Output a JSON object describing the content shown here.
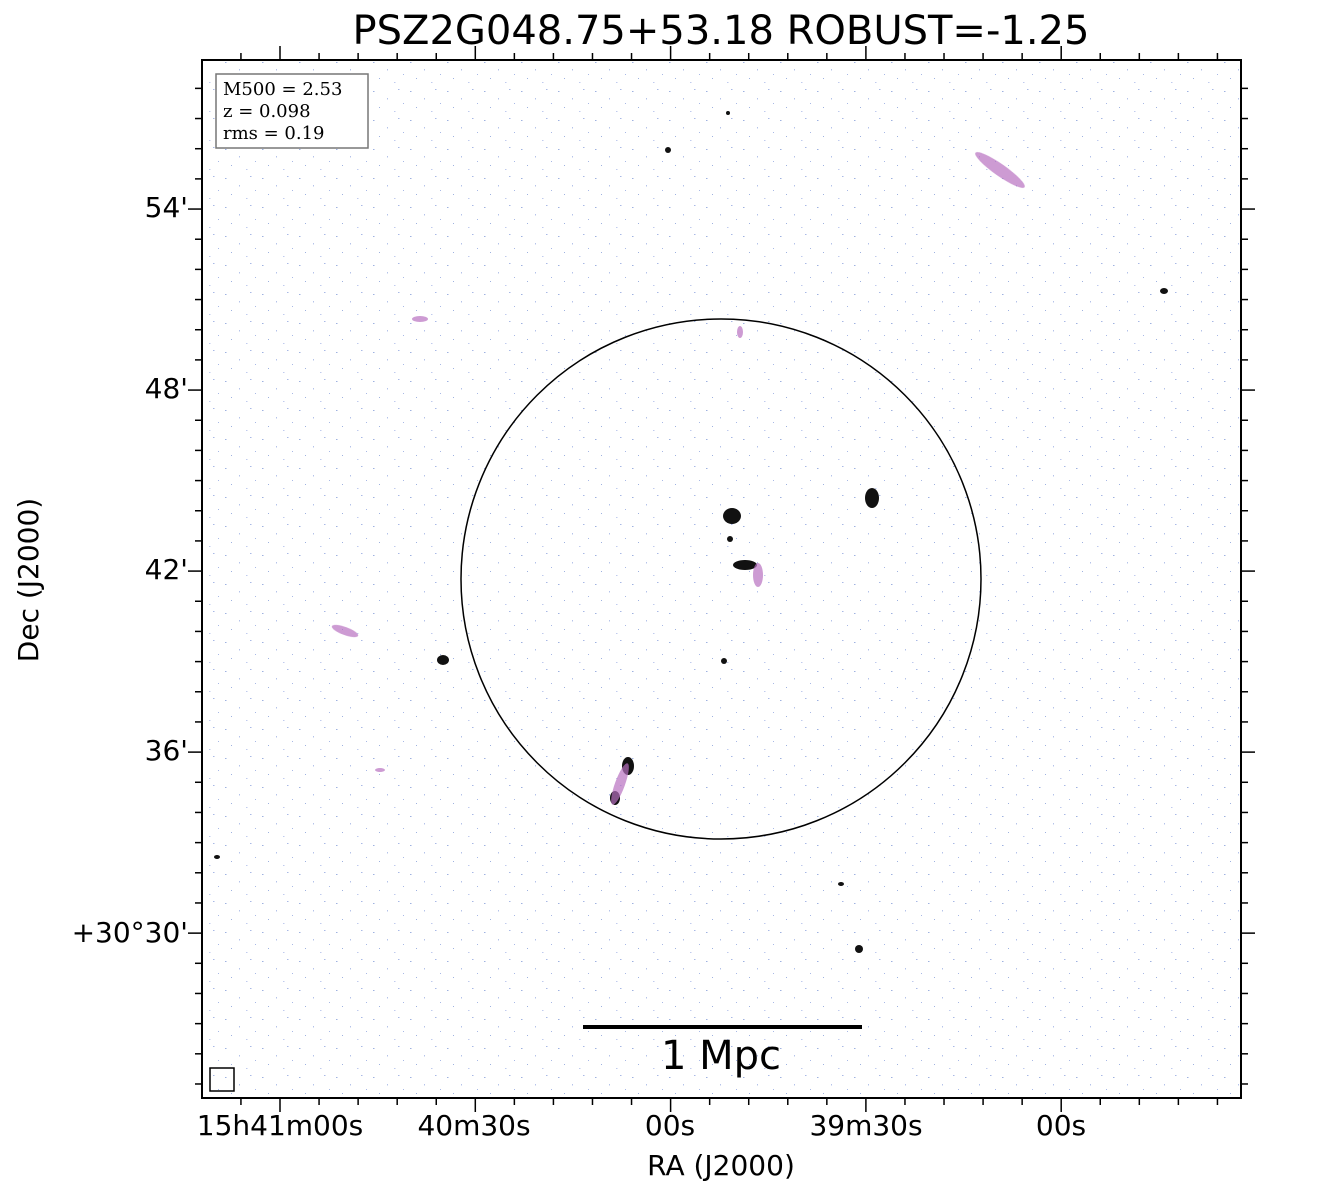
{
  "title": "PSZ2G048.75+53.18 ROBUST=-1.25",
  "x_axis": {
    "label": "RA (J2000)",
    "ticks": [
      "15h41m00s",
      "40m30s",
      "00s",
      "39m30s",
      "00s"
    ]
  },
  "y_axis": {
    "label": "Dec (J2000)",
    "ticks": [
      "54'",
      "48'",
      "42'",
      "36'",
      "+30°30'"
    ]
  },
  "info_box": [
    "M500 = 2.53",
    "z = 0.098",
    "rms = 0.19"
  ],
  "scale_bar": "1 Mpc"
}
